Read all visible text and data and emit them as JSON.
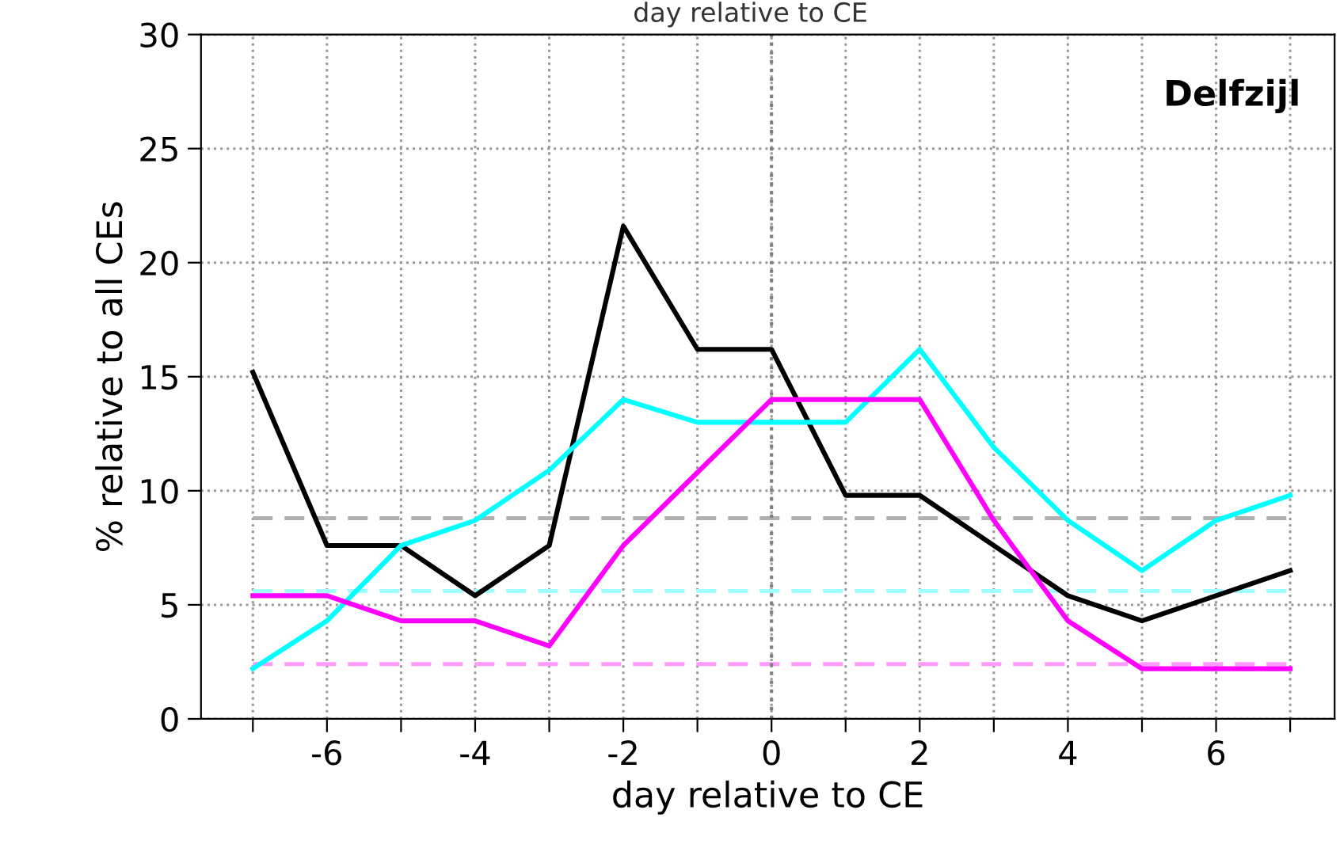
{
  "chart_data": {
    "type": "line",
    "xlabel": "day relative to CE",
    "ylabel": "% relative to all CEs",
    "annotations": [
      "Delfzijl",
      "day relative to CE"
    ],
    "x": [
      -7,
      -6,
      -5,
      -4,
      -3,
      -2,
      -1,
      0,
      1,
      2,
      3,
      4,
      5,
      6,
      7
    ],
    "series": [
      {
        "color": "#000000",
        "values": [
          15.2,
          7.6,
          7.6,
          5.4,
          7.6,
          21.6,
          16.2,
          16.2,
          9.8,
          9.8,
          7.6,
          5.4,
          4.3,
          5.4,
          6.5
        ]
      },
      {
        "color": "#00ffff",
        "values": [
          2.2,
          4.3,
          7.6,
          8.7,
          10.9,
          14.0,
          13.0,
          13.0,
          13.0,
          16.2,
          11.9,
          8.7,
          6.5,
          8.7,
          9.8
        ]
      },
      {
        "color": "#ff00ff",
        "values": [
          5.4,
          5.4,
          4.3,
          4.3,
          3.2,
          7.6,
          10.8,
          14.0,
          14.0,
          14.0,
          8.7,
          4.3,
          2.2,
          2.2,
          2.2
        ]
      }
    ],
    "ref_lines": [
      {
        "axis": "y",
        "value": 8.8,
        "color": "#b0b0b0",
        "line_style": "dashed"
      },
      {
        "axis": "y",
        "value": 5.6,
        "color": "#a0ffff",
        "line_style": "dashed"
      },
      {
        "axis": "y",
        "value": 2.4,
        "color": "#ff99ff",
        "line_style": "dashed"
      },
      {
        "axis": "x",
        "value": 0,
        "color": "#808080",
        "line_style": "dotted"
      }
    ],
    "xlim": [
      -7.7,
      7.6
    ],
    "ylim": [
      0,
      30
    ],
    "xticks": [
      {
        "value": -7,
        "label": null
      },
      -6,
      {
        "value": -5,
        "label": null
      },
      -4,
      {
        "value": -3,
        "label": null
      },
      -2,
      {
        "value": -1,
        "label": null
      },
      0,
      {
        "value": 1,
        "label": null
      },
      2,
      {
        "value": 3,
        "label": null
      },
      4,
      {
        "value": 5,
        "label": null
      },
      6,
      {
        "value": 7,
        "label": null
      }
    ],
    "yticks": [
      0,
      5,
      10,
      15,
      20,
      25,
      30
    ],
    "grid": true,
    "legend": false,
    "marker": "none",
    "line_style": "solid"
  }
}
